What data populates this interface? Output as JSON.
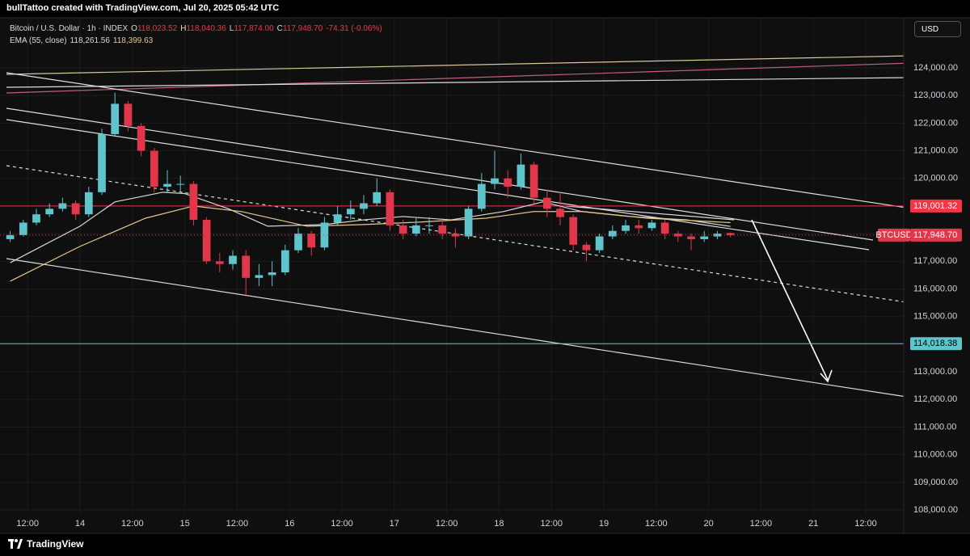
{
  "header": {
    "title": "bullTattoo created with TradingView.com, Jul 20, 2025 05:42 UTC"
  },
  "legend": {
    "symbol_line": "Bitcoin / U.S. Dollar · 1h · INDEX",
    "ohlc": [
      {
        "key": "O",
        "value": "118,023.52"
      },
      {
        "key": "H",
        "value": "118,040.36"
      },
      {
        "key": "L",
        "value": "117,874.00"
      },
      {
        "key": "C",
        "value": "117,948.70"
      }
    ],
    "change": "-74.31 (-0.06%)"
  },
  "currency_button": "USD",
  "footer": {
    "brand": "TradingView"
  },
  "chart_data": {
    "type": "candlestick",
    "x": [
      "13 08:00",
      "13 11:00",
      "13 14:00",
      "13 17:00",
      "13 20:00",
      "13 23:00",
      "14 02:00",
      "14 05:00",
      "14 08:00",
      "14 11:00",
      "14 14:00",
      "14 17:00",
      "14 20:00",
      "14 23:00",
      "15 02:00",
      "15 05:00",
      "15 08:00",
      "15 11:00",
      "15 14:00",
      "15 17:00",
      "15 20:00",
      "15 23:00",
      "16 02:00",
      "16 05:00",
      "16 08:00",
      "16 11:00",
      "16 14:00",
      "16 17:00",
      "16 20:00",
      "16 23:00",
      "17 02:00",
      "17 05:00",
      "17 08:00",
      "17 11:00",
      "17 14:00",
      "17 17:00",
      "17 20:00",
      "17 23:00",
      "18 02:00",
      "18 05:00",
      "18 08:00",
      "18 11:00",
      "18 14:00",
      "18 17:00",
      "18 20:00",
      "18 23:00",
      "19 02:00",
      "19 05:00",
      "19 08:00",
      "19 11:00",
      "19 14:00",
      "19 17:00",
      "19 20:00",
      "19 23:00",
      "20 02:00",
      "20 05:00"
    ],
    "open": [
      117800,
      117950,
      118400,
      118700,
      118900,
      119100,
      118700,
      119500,
      121600,
      122700,
      121900,
      121000,
      119700,
      119800,
      119800,
      118500,
      117000,
      116900,
      117200,
      116400,
      116500,
      116600,
      117400,
      118000,
      117500,
      118400,
      118700,
      118900,
      119100,
      119500,
      118300,
      118000,
      118300,
      118300,
      118000,
      117900,
      118900,
      119800,
      120000,
      119700,
      120500,
      119300,
      118900,
      118600,
      117600,
      117400,
      117900,
      118100,
      118300,
      118200,
      118400,
      118000,
      117900,
      117800,
      117900,
      118023.52
    ],
    "high": [
      118100,
      118500,
      118900,
      119100,
      119300,
      119200,
      119700,
      121800,
      123100,
      122800,
      122000,
      121100,
      120300,
      120100,
      119900,
      118600,
      117300,
      117400,
      117400,
      116900,
      117000,
      117600,
      118200,
      118100,
      118600,
      119000,
      119200,
      119400,
      120000,
      119600,
      118500,
      118600,
      118600,
      118500,
      118200,
      119000,
      120200,
      121000,
      120300,
      120900,
      120600,
      119600,
      119500,
      118700,
      117700,
      118000,
      118300,
      118500,
      118500,
      118500,
      118500,
      118100,
      118000,
      118100,
      118100,
      118040.36
    ],
    "low": [
      117700,
      117900,
      118300,
      118600,
      118800,
      118500,
      118600,
      119400,
      121500,
      121700,
      120800,
      119500,
      119500,
      119500,
      118300,
      116900,
      116600,
      116700,
      115800,
      116100,
      116100,
      116500,
      117300,
      117200,
      117400,
      118300,
      118500,
      118700,
      119000,
      118100,
      117800,
      117900,
      118000,
      117800,
      117500,
      117800,
      118800,
      119600,
      119300,
      119600,
      119100,
      118600,
      118300,
      117400,
      117000,
      117300,
      117800,
      118000,
      118000,
      118100,
      117800,
      117700,
      117400,
      117700,
      117800,
      117874
    ],
    "close": [
      117950,
      118400,
      118700,
      118900,
      119100,
      118700,
      119500,
      121600,
      122700,
      121900,
      121000,
      119700,
      119800,
      119800,
      118500,
      117000,
      116900,
      117200,
      116400,
      116500,
      116600,
      117400,
      118000,
      117500,
      118400,
      118700,
      118900,
      119100,
      119500,
      118300,
      118000,
      118300,
      118300,
      118000,
      117900,
      118900,
      119800,
      120000,
      119700,
      120500,
      119300,
      118900,
      118600,
      117600,
      117400,
      117900,
      118100,
      118300,
      118200,
      118400,
      118000,
      117900,
      117800,
      117900,
      118000,
      117948.7
    ],
    "up_color": "#5fc4cc",
    "down_color": "#e0384a",
    "indicator": {
      "name": "EMA (55, close)",
      "lines": [
        {
          "color": "#d9d9d9",
          "value_label": "118,261.56",
          "x": [
            "13 08:00",
            "14 00:00",
            "14 08:00",
            "14 19:00",
            "15 00:00",
            "15 10:00",
            "15 19:00",
            "16 08:00",
            "16 17:00",
            "17 02:00",
            "17 13:00",
            "18 01:00",
            "18 10:00",
            "18 19:00",
            "19 06:00",
            "19 19:00",
            "20 05:00"
          ],
          "values": [
            116950,
            118270,
            119150,
            119500,
            119450,
            118900,
            118270,
            118330,
            118500,
            118620,
            118500,
            118800,
            119150,
            118800,
            118620,
            118500,
            118261.56
          ]
        },
        {
          "color": "#e6c98a",
          "value_label": "118,399.63",
          "x": [
            "13 08:00",
            "14 00:00",
            "14 15:00",
            "15 02:00",
            "15 13:00",
            "16 04:00",
            "16 17:00",
            "17 06:00",
            "17 21:00",
            "18 08:00",
            "18 19:00",
            "19 10:00",
            "20 05:00"
          ],
          "values": [
            116280,
            117540,
            118560,
            119000,
            118800,
            118270,
            118330,
            118420,
            118560,
            118800,
            118800,
            118560,
            118399.63
          ]
        }
      ]
    },
    "levels": [
      {
        "value": 119001.32,
        "label": "119,001.32",
        "color": "#f23645"
      },
      {
        "value": 114018.38,
        "label": "114,018.38",
        "color": "#5fc4cc"
      }
    ],
    "last_price": 117948.7,
    "last_price_label": "117,948.70",
    "symbol": "BTCUSD",
    "xlim": [
      "13 05:40",
      "21 20:42"
    ],
    "xticks": [
      {
        "value": "13 12:00",
        "label": "12:00"
      },
      {
        "value": "14 00:00",
        "label": "14"
      },
      {
        "value": "14 12:00",
        "label": "12:00"
      },
      {
        "value": "15 00:00",
        "label": "15"
      },
      {
        "value": "15 12:00",
        "label": "12:00"
      },
      {
        "value": "16 00:00",
        "label": "16"
      },
      {
        "value": "16 12:00",
        "label": "12:00"
      },
      {
        "value": "17 00:00",
        "label": "17"
      },
      {
        "value": "17 12:00",
        "label": "12:00"
      },
      {
        "value": "18 00:00",
        "label": "18"
      },
      {
        "value": "18 12:00",
        "label": "12:00"
      },
      {
        "value": "19 00:00",
        "label": "19"
      },
      {
        "value": "19 12:00",
        "label": "12:00"
      },
      {
        "value": "20 00:00",
        "label": "20"
      },
      {
        "value": "20 12:00",
        "label": "12:00"
      },
      {
        "value": "21 00:00",
        "label": "21"
      },
      {
        "value": "21 12:00",
        "label": "12:00"
      }
    ],
    "ylim": [
      107855,
      125813
    ],
    "yticks": [
      {
        "value": 108000,
        "label": "108,000.00"
      },
      {
        "value": 109000,
        "label": "109,000.00"
      },
      {
        "value": 110000,
        "label": "110,000.00"
      },
      {
        "value": 111000,
        "label": "111,000.00"
      },
      {
        "value": 112000,
        "label": "112,000.00"
      },
      {
        "value": 113000,
        "label": "113,000.00"
      },
      {
        "value": 114000,
        "label": "114,000.00"
      },
      {
        "value": 115000,
        "label": "115,000.00"
      },
      {
        "value": 116000,
        "label": "116,000.00"
      },
      {
        "value": 117000,
        "label": "117,000.00"
      },
      {
        "value": 118000,
        "label": "118,000.00"
      },
      {
        "value": 119000,
        "label": "119,000.00"
      },
      {
        "value": 120000,
        "label": "120,000.00"
      },
      {
        "value": 121000,
        "label": "121,000.00"
      },
      {
        "value": 122000,
        "label": "122,000.00"
      },
      {
        "value": 123000,
        "label": "123,000.00"
      },
      {
        "value": 124000,
        "label": "124,000.00"
      }
    ],
    "grid": true
  }
}
